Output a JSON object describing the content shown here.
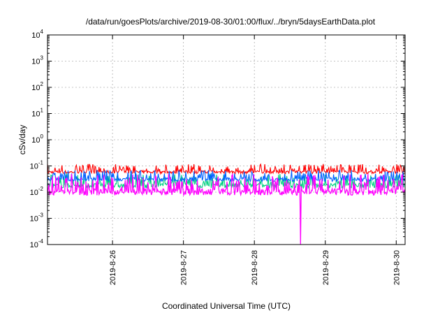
{
  "chart_data": {
    "type": "line",
    "title": "/data/run/goesPlots/archive/2019-08-30/01:00/flux/../bryn/5daysEarthData.plot",
    "xlabel": "Coordinated Universal Time (UTC)",
    "ylabel": "cSv/day",
    "yscale": "log",
    "ylim": [
      0.0001,
      10000
    ],
    "xlim": [
      "2019-08-25 02:00",
      "2019-08-30 03:00"
    ],
    "y_ticks": [
      {
        "base": "10",
        "exp": "-4",
        "value": 0.0001
      },
      {
        "base": "10",
        "exp": "-3",
        "value": 0.001
      },
      {
        "base": "10",
        "exp": "-2",
        "value": 0.01
      },
      {
        "base": "10",
        "exp": "-1",
        "value": 0.1
      },
      {
        "base": "10",
        "exp": "0",
        "value": 1
      },
      {
        "base": "10",
        "exp": "1",
        "value": 10
      },
      {
        "base": "10",
        "exp": "2",
        "value": 100
      },
      {
        "base": "10",
        "exp": "3",
        "value": 1000
      },
      {
        "base": "10",
        "exp": "4",
        "value": 10000
      }
    ],
    "x_ticks": [
      {
        "label": "2019-8-26",
        "value": "2019-08-26 00:00"
      },
      {
        "label": "2019-8-27",
        "value": "2019-08-27 00:00"
      },
      {
        "label": "2019-8-28",
        "value": "2019-08-28 00:00"
      },
      {
        "label": "2019-8-29",
        "value": "2019-08-29 00:00"
      },
      {
        "label": "2019-8-30",
        "value": "2019-08-30 00:00"
      }
    ],
    "grid": true,
    "legend": "none",
    "series": [
      {
        "color": "#ff0000",
        "typical_low": 0.045,
        "typical_high": 0.1,
        "peak": 0.12
      },
      {
        "color": "#00d080",
        "typical_low": 0.012,
        "typical_high": 0.04,
        "peak": 0.05
      },
      {
        "color": "#0060ff",
        "typical_low": 0.022,
        "typical_high": 0.06,
        "peak": 0.07
      },
      {
        "color": "#ff00ff",
        "typical_low": 0.006,
        "typical_high": 0.03,
        "peak": 0.05,
        "dip": {
          "time": "2019-08-28 15:40",
          "value": 0.0001
        }
      }
    ]
  }
}
